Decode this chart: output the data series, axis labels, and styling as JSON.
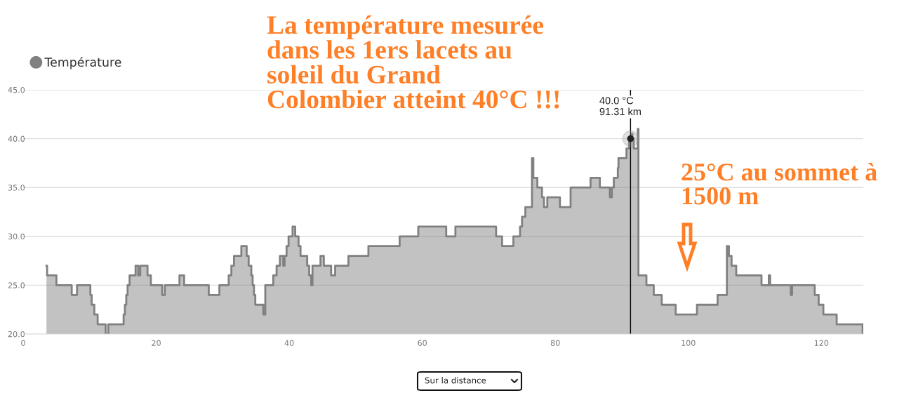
{
  "chart_data": {
    "type": "area",
    "x": [
      3.5,
      3.6,
      5.0,
      7.3,
      8.1,
      10.1,
      10.3,
      10.7,
      11.2,
      12.4,
      12.8,
      15.1,
      15.3,
      15.5,
      15.7,
      16.0,
      16.9,
      17.3,
      17.6,
      18.7,
      19.2,
      20.9,
      21.3,
      23.5,
      24.2,
      27.9,
      29.5,
      30.9,
      31.3,
      31.7,
      32.8,
      33.6,
      33.9,
      34.3,
      34.5,
      34.7,
      34.9,
      36.1,
      36.4,
      37.6,
      38.1,
      38.6,
      39.1,
      39.3,
      39.6,
      39.9,
      40.5,
      40.9,
      41.4,
      41.7,
      42.7,
      43.0,
      43.3,
      43.5,
      44.7,
      45.2,
      46.3,
      46.9,
      48.9,
      51.9,
      56.6,
      59.4,
      63.6,
      64.98,
      71.1,
      72.0,
      73.7,
      74.7,
      75.0,
      75.5,
      76.5,
      76.7,
      77.3,
      78.0,
      78.3,
      78.8,
      80.7,
      82.3,
      85.3,
      86.7,
      88.2,
      88.5,
      88.8,
      89.4,
      89.5,
      90.7,
      91.1,
      91.4,
      91.6,
      91.8,
      92.4,
      92.5,
      93.7,
      94.8,
      96.0,
      98.1,
      101.3,
      104.4,
      105.8,
      106.1,
      106.5,
      107.2,
      111.0,
      112.1,
      112.3,
      115.4,
      115.6,
      119.0,
      119.6,
      120.3,
      122.3,
      126.2
    ],
    "series": [
      {
        "name": "Température",
        "color": "#808080",
        "values": [
          27,
          26,
          25,
          24,
          25,
          24,
          23,
          22,
          21,
          20,
          21,
          22,
          23,
          24,
          25,
          26,
          27,
          26,
          27,
          26,
          25,
          24,
          25,
          26,
          25,
          24,
          25,
          26,
          27,
          28,
          29,
          28,
          27,
          26,
          25,
          24,
          23,
          22,
          25,
          26,
          27,
          28,
          27,
          28,
          29,
          30,
          31,
          30,
          29,
          28,
          27,
          26,
          25,
          27,
          28,
          27,
          26,
          27,
          28,
          29,
          30,
          31,
          30,
          31,
          30,
          29,
          30,
          31,
          32,
          33,
          38,
          36,
          35,
          34,
          33,
          34,
          33,
          35,
          36,
          35,
          34,
          35,
          36,
          37,
          38,
          39,
          40,
          40.5,
          40,
          39,
          41,
          26,
          25,
          24,
          23,
          22,
          23,
          24,
          29,
          28,
          27,
          26,
          25,
          26,
          25,
          24,
          25,
          24,
          23,
          22,
          21,
          20
        ]
      }
    ],
    "xlim": [
      0,
      126.3
    ],
    "ylim": [
      20,
      45
    ],
    "xticks": [
      0,
      20,
      40,
      60,
      80,
      100,
      120
    ],
    "yticks": [
      {
        "value": 20,
        "label": "20.0"
      },
      {
        "value": 25,
        "label": "25.0"
      },
      {
        "value": 30,
        "label": "30.0"
      },
      {
        "value": 35,
        "label": "35.0"
      },
      {
        "value": 40,
        "label": "40.0"
      },
      {
        "value": 45,
        "label": "45.0"
      }
    ],
    "grid": "y",
    "legend": "top left",
    "marker": "none",
    "line_style": "solid",
    "ref_lines": [
      {
        "axis": "x",
        "value": 91.31,
        "color": "#000000"
      }
    ],
    "annotations": [
      "La température mesurée\ndans les 1ers lacets au\nsoleil du Grand\nColombier atteint 40°C !!!",
      "25°C au sommet à\n1500 m",
      {
        "text": "40.0 °C\n91.31 km",
        "x": 91.31,
        "y": 40
      },
      "Sur la distance"
    ]
  }
}
